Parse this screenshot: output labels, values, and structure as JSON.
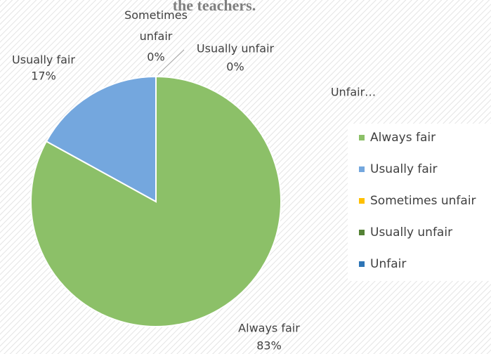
{
  "chart_data": {
    "type": "pie",
    "title": "the teachers.",
    "categories": [
      "Always fair",
      "Usually fair",
      "Sometimes unfair",
      "Usually unfair",
      "Unfair"
    ],
    "values": [
      83,
      17,
      0,
      0,
      0
    ],
    "value_labels": [
      "83%",
      "17%",
      "0%",
      "0%",
      null
    ],
    "label_names": [
      "Always fair",
      "Usually fair",
      "Sometimes unfair",
      "Usually unfair",
      "Unfair…"
    ],
    "colors": [
      "#8cc068",
      "#74a7de",
      "#ffc000",
      "#548235",
      "#2e75b6"
    ],
    "legend": "right"
  }
}
